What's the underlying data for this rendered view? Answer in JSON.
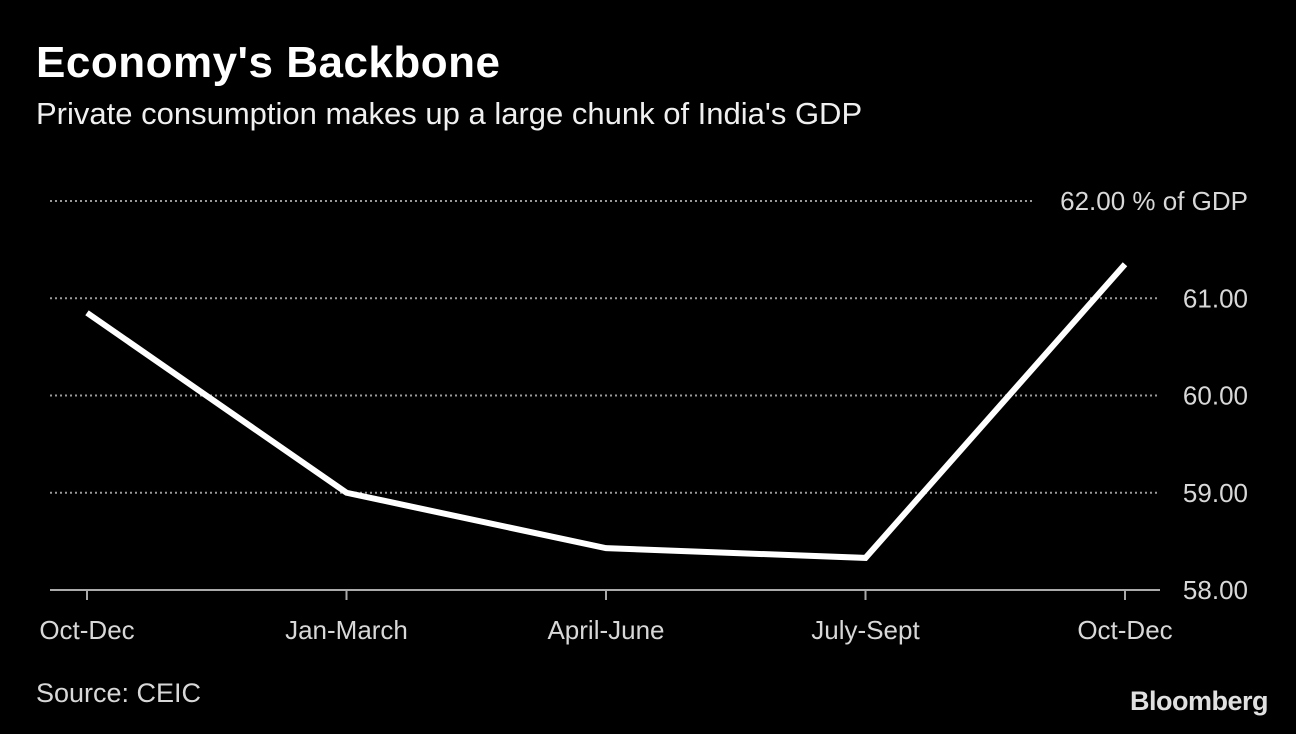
{
  "chart_data": {
    "type": "line",
    "title": "Economy's Backbone",
    "subtitle": "Private consumption makes up a large chunk of India's GDP",
    "categories": [
      "Oct-Dec",
      "Jan-March",
      "April-June",
      "July-Sept",
      "Oct-Dec"
    ],
    "values": [
      60.85,
      59.0,
      58.43,
      58.33,
      61.35
    ],
    "ylim": [
      58,
      62
    ],
    "yticks": [
      "58.00",
      "59.00",
      "60.00",
      "61.00",
      "62.00"
    ],
    "yunit": "% of GDP",
    "grid": true,
    "axis_side": "right",
    "line_color": "#ffffff",
    "source": "Source: CEIC"
  },
  "logo": "Bloomberg"
}
